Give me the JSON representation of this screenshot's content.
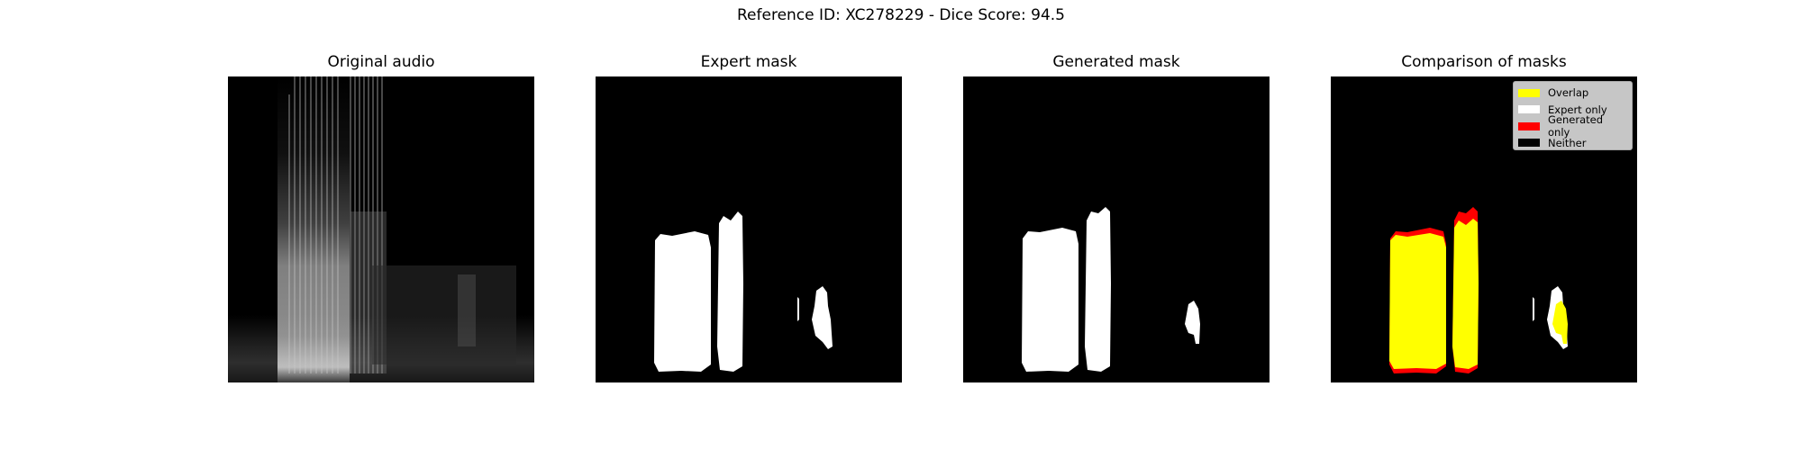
{
  "figure": {
    "suptitle": "Reference ID: XC278229 - Dice Score: 94.5"
  },
  "panels": [
    {
      "title": "Original audio"
    },
    {
      "title": "Expert mask"
    },
    {
      "title": "Generated mask"
    },
    {
      "title": "Comparison of masks"
    }
  ],
  "legend": [
    {
      "label": "Overlap",
      "color": "#ffff00"
    },
    {
      "label": "Expert only",
      "color": "#ffffff"
    },
    {
      "label": "Generated only",
      "color": "#ff0000"
    },
    {
      "label": "Neither",
      "color": "#000000"
    }
  ],
  "colors": {
    "background": "#000000",
    "mask": "#ffffff",
    "overlap": "#ffff00",
    "expert_only": "#ffffff",
    "generated_only": "#ff0000"
  }
}
